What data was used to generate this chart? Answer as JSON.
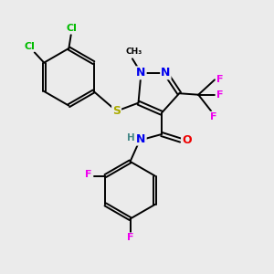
{
  "background_color": "#ebebeb",
  "bond_color": "#000000",
  "bond_width": 1.4,
  "atom_colors": {
    "Cl": "#00bb00",
    "S": "#aaaa00",
    "N": "#0000ee",
    "O": "#ee0000",
    "F": "#ee00ee",
    "H": "#448888",
    "C": "#000000"
  },
  "font_size": 8,
  "figsize": [
    3.0,
    3.0
  ],
  "dpi": 100
}
